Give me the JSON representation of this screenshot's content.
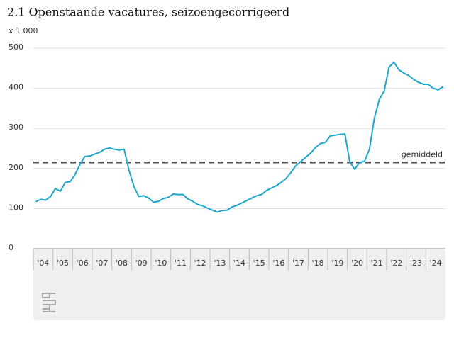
{
  "chart_data": {
    "type": "line",
    "title": "2.1 Openstaande vacatures, seizoengecorrigeerd",
    "unit_label": "x 1 000",
    "categories": [
      "'04",
      null,
      null,
      null,
      "'05",
      null,
      null,
      null,
      "'06",
      null,
      null,
      null,
      "'07",
      null,
      null,
      null,
      "'08",
      null,
      null,
      null,
      "'09",
      null,
      null,
      null,
      "'10",
      null,
      null,
      null,
      "'11",
      null,
      null,
      null,
      "'12",
      null,
      null,
      null,
      "'13",
      null,
      null,
      null,
      "'14",
      null,
      null,
      null,
      "'15",
      null,
      null,
      null,
      "'16",
      null,
      null,
      null,
      "'17",
      null,
      null,
      null,
      "'18",
      null,
      null,
      null,
      "'19",
      null,
      null,
      null,
      "'20",
      null,
      null,
      null,
      "'21",
      null,
      null,
      null,
      "'22",
      null,
      null,
      null,
      "'23",
      null,
      null,
      null,
      "'24",
      null,
      null,
      null
    ],
    "series": [
      {
        "name": "Openstaande vacatures",
        "color": "#1fa6cc",
        "values": [
          117,
          123,
          121,
          130,
          150,
          143,
          165,
          167,
          185,
          210,
          230,
          231,
          236,
          240,
          248,
          251,
          248,
          246,
          248,
          195,
          155,
          130,
          132,
          126,
          116,
          118,
          125,
          128,
          136,
          135,
          135,
          124,
          118,
          110,
          107,
          101,
          96,
          91,
          95,
          96,
          104,
          108,
          114,
          120,
          126,
          132,
          135,
          145,
          151,
          157,
          165,
          175,
          190,
          207,
          217,
          228,
          238,
          252,
          262,
          265,
          281,
          283,
          285,
          286,
          216,
          198,
          215,
          218,
          248,
          325,
          372,
          393,
          453,
          465,
          446,
          438,
          432,
          422,
          415,
          410,
          410,
          400,
          396,
          404
        ]
      }
    ],
    "average": {
      "label": "gemiddeld",
      "value": 215,
      "color": "#555555"
    },
    "ylim": [
      0,
      500
    ],
    "yticks": [
      0,
      100,
      200,
      300,
      400,
      500
    ],
    "grid": true
  }
}
